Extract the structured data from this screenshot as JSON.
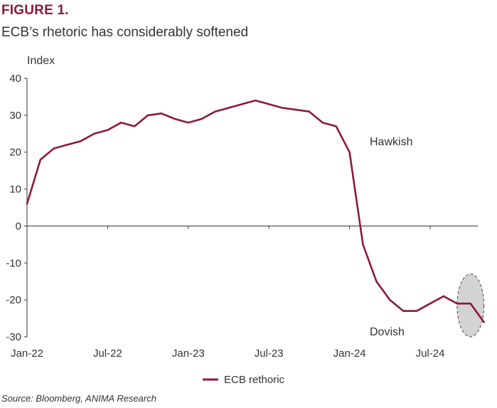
{
  "figure_label": "FIGURE 1.",
  "title": "ECB’s rhetoric has considerably softened",
  "source": "Source: Bloomberg, ANIMA Research",
  "colors": {
    "series": "#8b1a3a",
    "axis": "#333333",
    "highlight_fill": "#d3d3d3"
  },
  "chart_data": {
    "type": "line",
    "ylabel": "Index",
    "xlabel": "",
    "ylim": [
      -30,
      40
    ],
    "yticks": [
      40,
      30,
      20,
      10,
      0,
      -10,
      -20,
      -30
    ],
    "xticks": [
      "Jan-22",
      "Jul-22",
      "Jan-23",
      "Jul-23",
      "Jan-24",
      "Jul-24"
    ],
    "x_range": [
      "2022-01",
      "2024-11"
    ],
    "grid": false,
    "legend": "bottom-center",
    "annotations": [
      "Hawkish",
      "Dovish"
    ],
    "highlight": {
      "shape": "ellipse",
      "x_range": [
        "2024-09",
        "2024-11"
      ],
      "y_range": [
        -30,
        -13
      ]
    },
    "series": [
      {
        "name": "ECB rethoric",
        "x": [
          "2022-01",
          "2022-02",
          "2022-03",
          "2022-04",
          "2022-05",
          "2022-06",
          "2022-07",
          "2022-08",
          "2022-09",
          "2022-10",
          "2022-11",
          "2022-12",
          "2023-01",
          "2023-02",
          "2023-03",
          "2023-04",
          "2023-05",
          "2023-06",
          "2023-07",
          "2023-08",
          "2023-09",
          "2023-10",
          "2023-11",
          "2023-12",
          "2024-01",
          "2024-02",
          "2024-03",
          "2024-04",
          "2024-05",
          "2024-06",
          "2024-07",
          "2024-08",
          "2024-09",
          "2024-10",
          "2024-11"
        ],
        "values": [
          6,
          18,
          21,
          22,
          23,
          25,
          26,
          28,
          27,
          30,
          30.5,
          29,
          28,
          29,
          31,
          32,
          33,
          34,
          33,
          32,
          31.5,
          31,
          28,
          27,
          20,
          -5,
          -15,
          -20,
          -23,
          -23,
          -21,
          -19,
          -21,
          -21,
          -26
        ]
      }
    ]
  }
}
